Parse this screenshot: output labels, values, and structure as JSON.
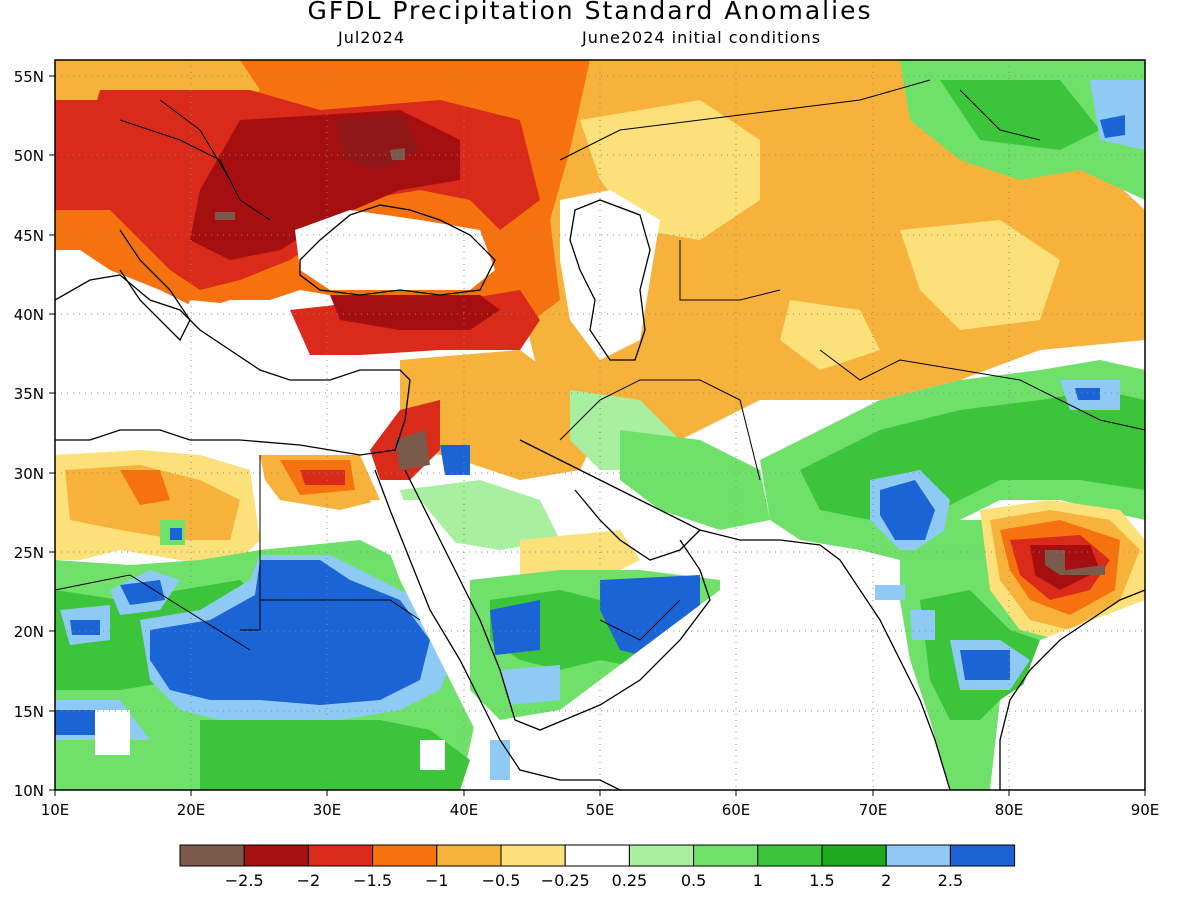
{
  "title": "GFDL Precipitation Standard Anomalies",
  "subtitle_left": "Jul2024",
  "subtitle_right": "June2024 initial conditions",
  "map": {
    "lon_ticks": [
      "10E",
      "20E",
      "30E",
      "40E",
      "50E",
      "60E",
      "70E",
      "80E",
      "90E"
    ],
    "lat_ticks": [
      "10N",
      "15N",
      "20N",
      "25N",
      "30N",
      "35N",
      "40N",
      "45N",
      "50N",
      "55N"
    ],
    "extent": {
      "lon_min": 10,
      "lon_max": 90,
      "lat_min": 10,
      "lat_max": 56
    }
  },
  "colorbar": {
    "colors": [
      "#7a5a4a",
      "#a50f0f",
      "#d92a1a",
      "#f5720f",
      "#f7b23c",
      "#fce07a",
      "#ffffff",
      "#a8f0a0",
      "#6fe06a",
      "#3cc43a",
      "#1eaa1e",
      "#8fcaf5",
      "#1a64d6"
    ],
    "labels": [
      "−2.5",
      "−2",
      "−1.5",
      "−1",
      "−0.5",
      "−0.25",
      "0.25",
      "0.5",
      "1",
      "1.5",
      "2",
      "2.5"
    ]
  }
}
